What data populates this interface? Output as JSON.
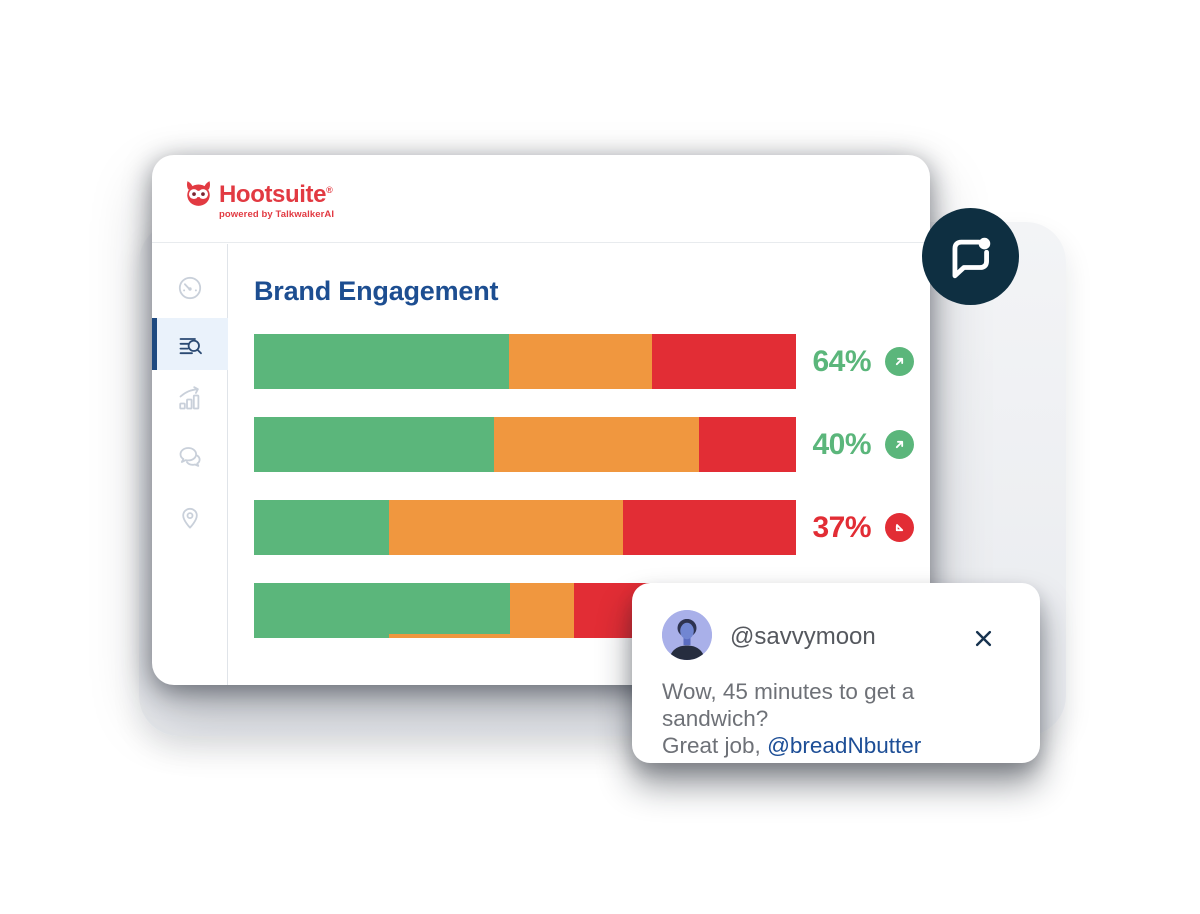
{
  "app": {
    "brand": {
      "name": "Hootsuite",
      "registered_mark": "®",
      "tagline": "powered by TalkwalkerAI",
      "brand_color": "#e23a42"
    }
  },
  "sidebar": {
    "items": [
      {
        "id": "dashboard",
        "icon": "gauge-icon",
        "active": false
      },
      {
        "id": "listening",
        "icon": "list-search-icon",
        "active": true
      },
      {
        "id": "analytics",
        "icon": "trend-chart-icon",
        "active": false
      },
      {
        "id": "conversations",
        "icon": "chat-bubbles-icon",
        "active": false
      },
      {
        "id": "locations",
        "icon": "location-pin-icon",
        "active": false
      }
    ]
  },
  "content": {
    "title": "Brand Engagement"
  },
  "chart_data": {
    "type": "bar",
    "orientation": "horizontal",
    "stacked": true,
    "title": "Brand Engagement",
    "xlabel": "",
    "ylabel": "",
    "legend": "none",
    "colors": {
      "green": "#5bb67b",
      "orange": "#f0973f",
      "red": "#e22d35"
    },
    "trend_colors": {
      "up": "#5bb67b",
      "down": "#e22d35"
    },
    "rows": [
      {
        "segments": {
          "green": 47.0,
          "orange": 26.5,
          "red": 26.5
        },
        "value_label": "64%",
        "trend": "up",
        "trend_icon": "arrow-up-right-icon"
      },
      {
        "segments": {
          "green": 44.3,
          "orange": 37.8,
          "red": 17.9
        },
        "value_label": "40%",
        "trend": "up",
        "trend_icon": "arrow-up-right-icon"
      },
      {
        "segments": {
          "green": 24.9,
          "orange": 43.2,
          "red": 31.9
        },
        "value_label": "37%",
        "trend": "down",
        "trend_icon": "arrow-down-left-icon"
      },
      {
        "segments": {
          "green": 47.2,
          "orange": 11.8,
          "red": 41.0
        },
        "value_label": null,
        "trend": null,
        "trend_icon": null
      }
    ]
  },
  "floating_icon": {
    "icon": "chat-notification-icon",
    "background": "#0e2f41"
  },
  "notification": {
    "username": "@savvymoon",
    "message": "Wow, 45 minutes to get a sandwich?",
    "message_line2_prefix": "Great job, ",
    "mention": "@breadNbutter",
    "mention_color": "#1d4e96",
    "close_icon": "close-icon"
  }
}
